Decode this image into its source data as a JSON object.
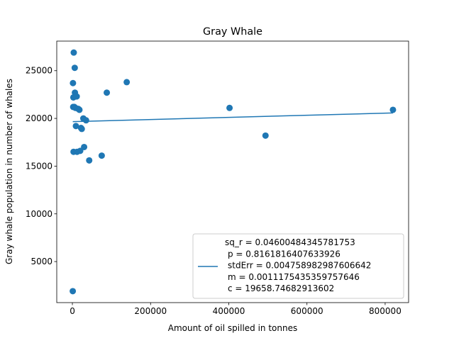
{
  "chart_data": {
    "type": "scatter",
    "title": "Gray Whale",
    "xlabel": "Amount of oil spilled in tonnes",
    "ylabel": "Gray whale population in number of whales",
    "xlim": [
      -40000,
      860000
    ],
    "ylim": [
      700,
      28100
    ],
    "x_ticks": [
      0,
      200000,
      400000,
      600000,
      800000
    ],
    "x_tick_labels": [
      "0",
      "200000",
      "400000",
      "600000",
      "800000"
    ],
    "y_ticks": [
      5000,
      10000,
      15000,
      20000,
      25000
    ],
    "y_tick_labels": [
      "5000",
      "10000",
      "15000",
      "20000",
      "25000"
    ],
    "grid": false,
    "point_color": "#1f77b4",
    "line_color": "#1f77b4",
    "points": [
      {
        "x": 1000,
        "y": 1900
      },
      {
        "x": 1500,
        "y": 23700
      },
      {
        "x": 2000,
        "y": 21200
      },
      {
        "x": 2500,
        "y": 22200
      },
      {
        "x": 3000,
        "y": 16500
      },
      {
        "x": 3500,
        "y": 26900
      },
      {
        "x": 5000,
        "y": 21200
      },
      {
        "x": 6000,
        "y": 25300
      },
      {
        "x": 6500,
        "y": 22700
      },
      {
        "x": 7000,
        "y": 22300
      },
      {
        "x": 8000,
        "y": 21100
      },
      {
        "x": 9000,
        "y": 19200
      },
      {
        "x": 11000,
        "y": 22300
      },
      {
        "x": 12000,
        "y": 16500
      },
      {
        "x": 15000,
        "y": 21000
      },
      {
        "x": 18000,
        "y": 20900
      },
      {
        "x": 20000,
        "y": 16600
      },
      {
        "x": 22000,
        "y": 19000
      },
      {
        "x": 24000,
        "y": 18900
      },
      {
        "x": 28000,
        "y": 20000
      },
      {
        "x": 30000,
        "y": 17000
      },
      {
        "x": 35000,
        "y": 19800
      },
      {
        "x": 43000,
        "y": 15600
      },
      {
        "x": 75000,
        "y": 16100
      },
      {
        "x": 88000,
        "y": 22700
      },
      {
        "x": 139000,
        "y": 23800
      },
      {
        "x": 402000,
        "y": 21100
      },
      {
        "x": 494000,
        "y": 18200
      },
      {
        "x": 820000,
        "y": 20900
      }
    ],
    "regression": {
      "x_start": 1000,
      "x_end": 820000,
      "m": 0.0011175435359757646,
      "c": 19658.74682913602
    },
    "legend": {
      "placement": "lower-right",
      "lines": [
        "sq_r = 0.04600484345781753",
        "p = 0.8161816407633926",
        "stdErr = 0.004758982987606642",
        "m = 0.0011175435359757646",
        "c = 19658.74682913602"
      ]
    }
  }
}
